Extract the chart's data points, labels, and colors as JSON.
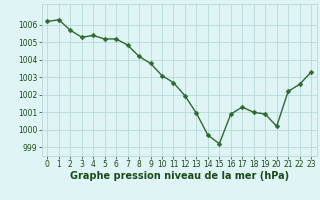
{
  "x": [
    0,
    1,
    2,
    3,
    4,
    5,
    6,
    7,
    8,
    9,
    10,
    11,
    12,
    13,
    14,
    15,
    16,
    17,
    18,
    19,
    20,
    21,
    22,
    23
  ],
  "y": [
    1006.2,
    1006.3,
    1005.7,
    1005.3,
    1005.4,
    1005.2,
    1005.2,
    1004.85,
    1004.2,
    1003.8,
    1003.1,
    1002.7,
    1001.95,
    1000.95,
    999.7,
    999.2,
    1000.9,
    1001.3,
    1001.0,
    1000.9,
    1000.2,
    1002.2,
    1002.6,
    1003.3
  ],
  "line_color": "#2d6a2d",
  "marker_color": "#2d6a2d",
  "bg_color": "#dff5f5",
  "grid_color": "#b8dada",
  "xlabel": "Graphe pression niveau de la mer (hPa)",
  "xlabel_color": "#1a4a1a",
  "xlabel_fontsize": 7,
  "ylim": [
    998.5,
    1007.2
  ],
  "xlim": [
    -0.5,
    23.5
  ],
  "yticks": [
    999,
    1000,
    1001,
    1002,
    1003,
    1004,
    1005,
    1006
  ],
  "xtick_labels": [
    "0",
    "1",
    "2",
    "3",
    "4",
    "5",
    "6",
    "7",
    "8",
    "9",
    "10",
    "11",
    "12",
    "13",
    "14",
    "15",
    "16",
    "17",
    "18",
    "19",
    "20",
    "21",
    "22",
    "23"
  ],
  "tick_fontsize": 5.5,
  "line_width": 1.0,
  "marker_size": 2.5
}
